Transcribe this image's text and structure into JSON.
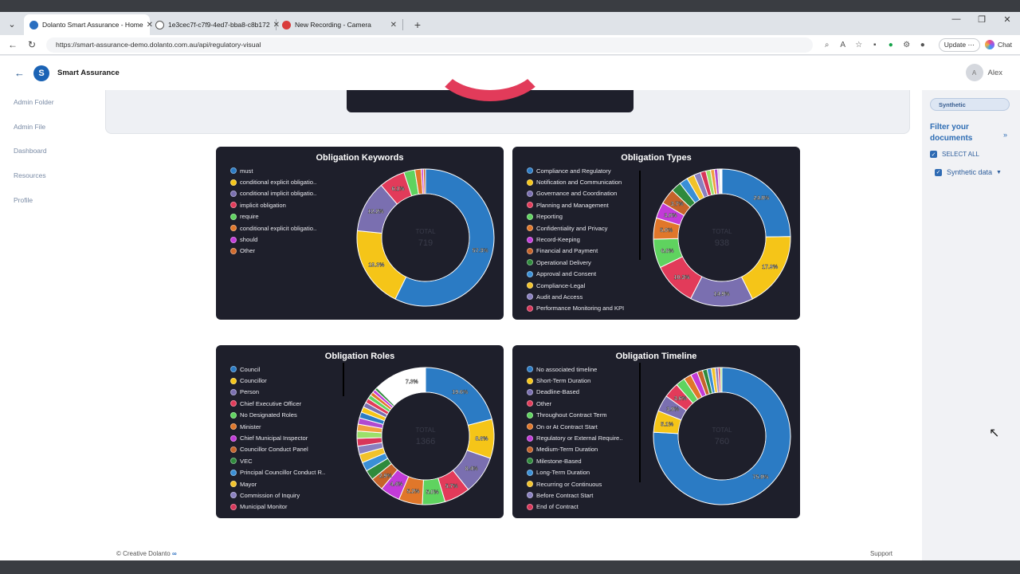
{
  "browser": {
    "tabs": [
      {
        "title": "Dolanto Smart Assurance - Home",
        "favicon_color": "#2a6fc0"
      },
      {
        "title": "1e3cec7f-c7f9-4ed7-bba8-c8b172",
        "favicon_color": "#555555"
      },
      {
        "title": "New Recording - Camera",
        "favicon_color": "#d93b3b"
      }
    ],
    "url": "https://smart-assurance-demo.dolanto.com.au/api/regulatory-visual",
    "update_label": "Update",
    "chat_label": "Chat"
  },
  "header": {
    "brand": "Smart Assurance",
    "user_initial": "A",
    "user_name": "Alex"
  },
  "sidebar": {
    "items": [
      "Admin Folder",
      "Admin File",
      "Dashboard",
      "Resources",
      "Profile"
    ]
  },
  "right_panel": {
    "chip": "Synthetic",
    "filter_title": "Filter your documents",
    "select_all": "SELECT ALL",
    "option": "Synthetic data"
  },
  "footer": {
    "copyright": "© Creative Dolanto",
    "support": "Support"
  },
  "chart_data": [
    {
      "type": "pie",
      "title": "Obligation Keywords",
      "total_label": "TOTAL",
      "total": "719",
      "legend": [
        "must",
        "conditional explicit obligatio..",
        "conditional implicit obligatio..",
        "implicit obligation",
        "require",
        "conditional explicit obligatio..",
        "should",
        "Other"
      ],
      "colors": [
        "#2b7bc4",
        "#f5c518",
        "#7a6fb0",
        "#e23b5a",
        "#5fd35f",
        "#e0772a",
        "#c23bd8",
        "#d16a2c"
      ],
      "values": [
        57.3,
        19.3,
        12.2,
        6.1,
        2.6,
        1.5,
        0.5,
        0.5
      ],
      "labels": [
        "57.3%",
        "19.3%",
        "12.2%",
        "6.1%",
        "",
        "",
        "",
        ""
      ]
    },
    {
      "type": "pie",
      "title": "Obligation Types",
      "total_label": "TOTAL",
      "total": "938",
      "legend": [
        "Compliance and Regulatory",
        "Notification and Communication",
        "Governance and Coordination",
        "Planning and Management",
        "Reporting",
        "Confidentiality and Privacy",
        "Record-Keeping",
        "Financial and Payment",
        "Operational Delivery",
        "Approval and Consent",
        "Compliance-Legal",
        "Audit and Access",
        "Performance Monitoring and KPI"
      ],
      "colors": [
        "#2b7bc4",
        "#f5c518",
        "#7a6fb0",
        "#e23b5a",
        "#5fd35f",
        "#e0772a",
        "#c23bd8",
        "#c5632a",
        "#2f8a3c",
        "#3a8fd6",
        "#f2c22a",
        "#8a80c0",
        "#d8365a",
        "#9be06a",
        "#f0a040",
        "#b04ad0",
        "#d0d0d0",
        "#ffffff"
      ],
      "values": [
        24.8,
        17.9,
        14.9,
        10.3,
        6.8,
        5.0,
        3.8,
        3.7,
        2.4,
        2.0,
        1.8,
        1.6,
        1.3,
        1.1,
        0.9,
        0.8,
        0.5,
        0.5
      ],
      "labels": [
        "24.8%",
        "17.9%",
        "14.9%",
        "10.3%",
        "6.8%",
        "5.0%",
        "3.8%",
        "3.7%",
        "",
        "",
        "",
        "",
        "",
        "",
        "",
        "",
        "",
        ""
      ]
    },
    {
      "type": "pie",
      "title": "Obligation Roles",
      "total_label": "TOTAL",
      "total": "1366",
      "legend": [
        "Council",
        "Councillor",
        "Person",
        "Chief Executive Officer",
        "No Designated Roles",
        "Minister",
        "Chief Municipal Inspector",
        "Councillor Conduct Panel",
        "VEC",
        "Principal Councillor Conduct R..",
        "Mayor",
        "Commission of Inquiry",
        "Municipal Monitor"
      ],
      "colors": [
        "#2b7bc4",
        "#f5c518",
        "#7a6fb0",
        "#e23b5a",
        "#5fd35f",
        "#e0772a",
        "#c23bd8",
        "#c5632a",
        "#2f8a3c",
        "#3a8fd6",
        "#f2c22a",
        "#8a80c0",
        "#d8365a",
        "#9be06a",
        "#f0a040",
        "#b04ad0",
        "#2b7bc4",
        "#f5c518",
        "#7a6fb0",
        "#e23b5a",
        "#5fd35f",
        "#e0772a",
        "#c23bd8",
        "#2f8a3c",
        "#ffffff",
        "#ffffff"
      ],
      "values": [
        19.6,
        8.6,
        8.4,
        5.7,
        5.0,
        5.2,
        4.4,
        2.9,
        2.2,
        2.0,
        1.9,
        1.8,
        1.7,
        1.6,
        1.5,
        1.4,
        1.3,
        1.2,
        1.1,
        1.0,
        0.9,
        0.8,
        0.7,
        0.6,
        4.4,
        7.3
      ],
      "labels": [
        "19.6%",
        "8.6%",
        "8.4%",
        "5.7%",
        "5.0%",
        "5.2%",
        "4.4%",
        "2.9%",
        "",
        "",
        "",
        "",
        "",
        "",
        "",
        "",
        "",
        "",
        "",
        "",
        "",
        "",
        "",
        "",
        "",
        "7.3%"
      ]
    },
    {
      "type": "pie",
      "title": "Obligation Timeline",
      "total_label": "TOTAL",
      "total": "760",
      "legend": [
        "No associated timeline",
        "Short-Term Duration",
        "Deadline-Based",
        "Other",
        "Throughout Contract Term",
        "On or At Contract Start",
        "Regulatory or External Require..",
        "Medium-Term Duration",
        "Milestone-Based",
        "Long-Term Duration",
        "Recurring or Continuous",
        "Before Contract Start",
        "End of Contract"
      ],
      "colors": [
        "#2b7bc4",
        "#f5c518",
        "#7a6fb0",
        "#e23b5a",
        "#5fd35f",
        "#e0772a",
        "#c23bd8",
        "#c5632a",
        "#2f8a3c",
        "#3a8fd6",
        "#f2c22a",
        "#8a80c0",
        "#d8365a",
        "#9be06a"
      ],
      "values": [
        75.9,
        5.1,
        3.9,
        3.6,
        2.2,
        1.8,
        1.6,
        1.3,
        1.1,
        1.0,
        0.9,
        0.7,
        0.5,
        0.4
      ],
      "labels": [
        "75.9%",
        "5.1%",
        "3.9%",
        "3.6%",
        "",
        "",
        "",
        "",
        "",
        "",
        "",
        "",
        "",
        ""
      ]
    }
  ]
}
